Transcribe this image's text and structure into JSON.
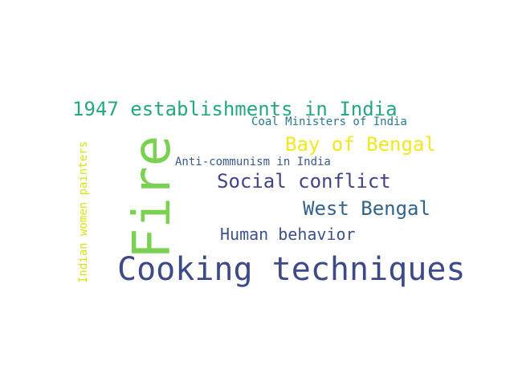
{
  "wordcloud": {
    "words": [
      {
        "text": "Cooking techniques",
        "color": "#3e4989"
      },
      {
        "text": "Fire",
        "color": "#7ad151"
      },
      {
        "text": "1947 establishments in India",
        "color": "#26a784"
      },
      {
        "text": "Bay of Bengal",
        "color": "#f4e61e"
      },
      {
        "text": "Social conflict",
        "color": "#414487"
      },
      {
        "text": "West Bengal",
        "color": "#33638d"
      },
      {
        "text": "Human behavior",
        "color": "#3b528b"
      },
      {
        "text": "Coal Ministers of India",
        "color": "#2a788e"
      },
      {
        "text": "Anti-communism in India",
        "color": "#38598c"
      },
      {
        "text": "Indian women painters",
        "color": "#d8e219"
      }
    ]
  }
}
